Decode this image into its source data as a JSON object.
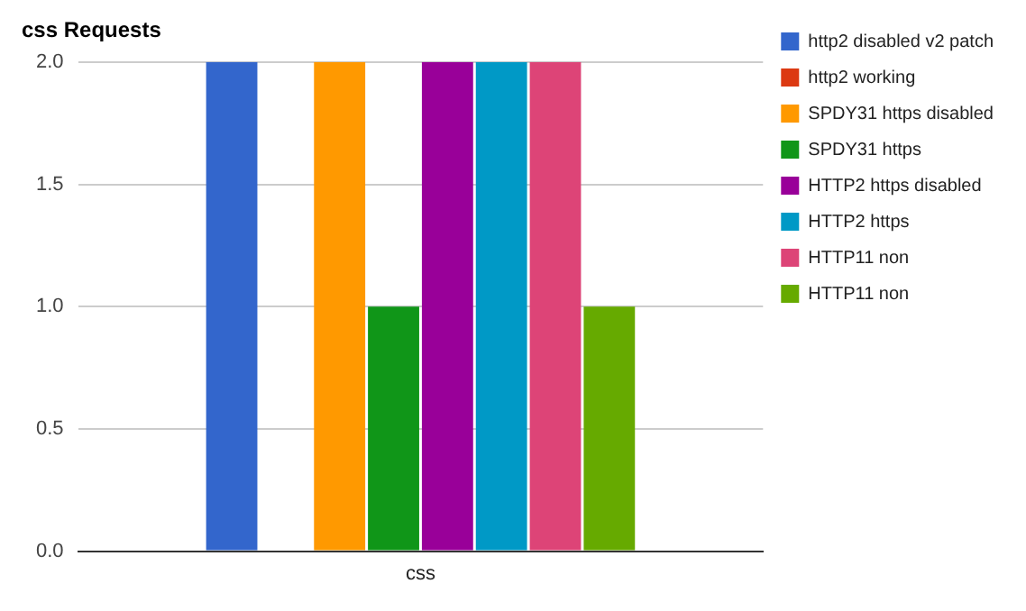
{
  "chart_data": {
    "type": "bar",
    "title": "css Requests",
    "categories": [
      "css"
    ],
    "series": [
      {
        "name": "http2 disabled v2 patch",
        "color": "#3366cc",
        "values": [
          2
        ]
      },
      {
        "name": "http2 working",
        "color": "#dc3912",
        "values": [
          0
        ]
      },
      {
        "name": "SPDY31 https disabled",
        "color": "#ff9900",
        "values": [
          2
        ]
      },
      {
        "name": "SPDY31 https",
        "color": "#109618",
        "values": [
          1
        ]
      },
      {
        "name": "HTTP2 https disabled",
        "color": "#990099",
        "values": [
          2
        ]
      },
      {
        "name": "HTTP2 https",
        "color": "#0099c6",
        "values": [
          2
        ]
      },
      {
        "name": "HTTP11 non",
        "color": "#dd4477",
        "values": [
          2
        ]
      },
      {
        "name": "HTTP11 non",
        "color": "#66aa00",
        "values": [
          1
        ]
      }
    ],
    "ylim": [
      0,
      2
    ],
    "yticks": [
      {
        "value": 0,
        "label": "0.0"
      },
      {
        "value": 0.5,
        "label": "0.5"
      },
      {
        "value": 1,
        "label": "1.0"
      },
      {
        "value": 1.5,
        "label": "1.5"
      },
      {
        "value": 2,
        "label": "2.0"
      }
    ],
    "grid": "y",
    "legend": "right"
  }
}
